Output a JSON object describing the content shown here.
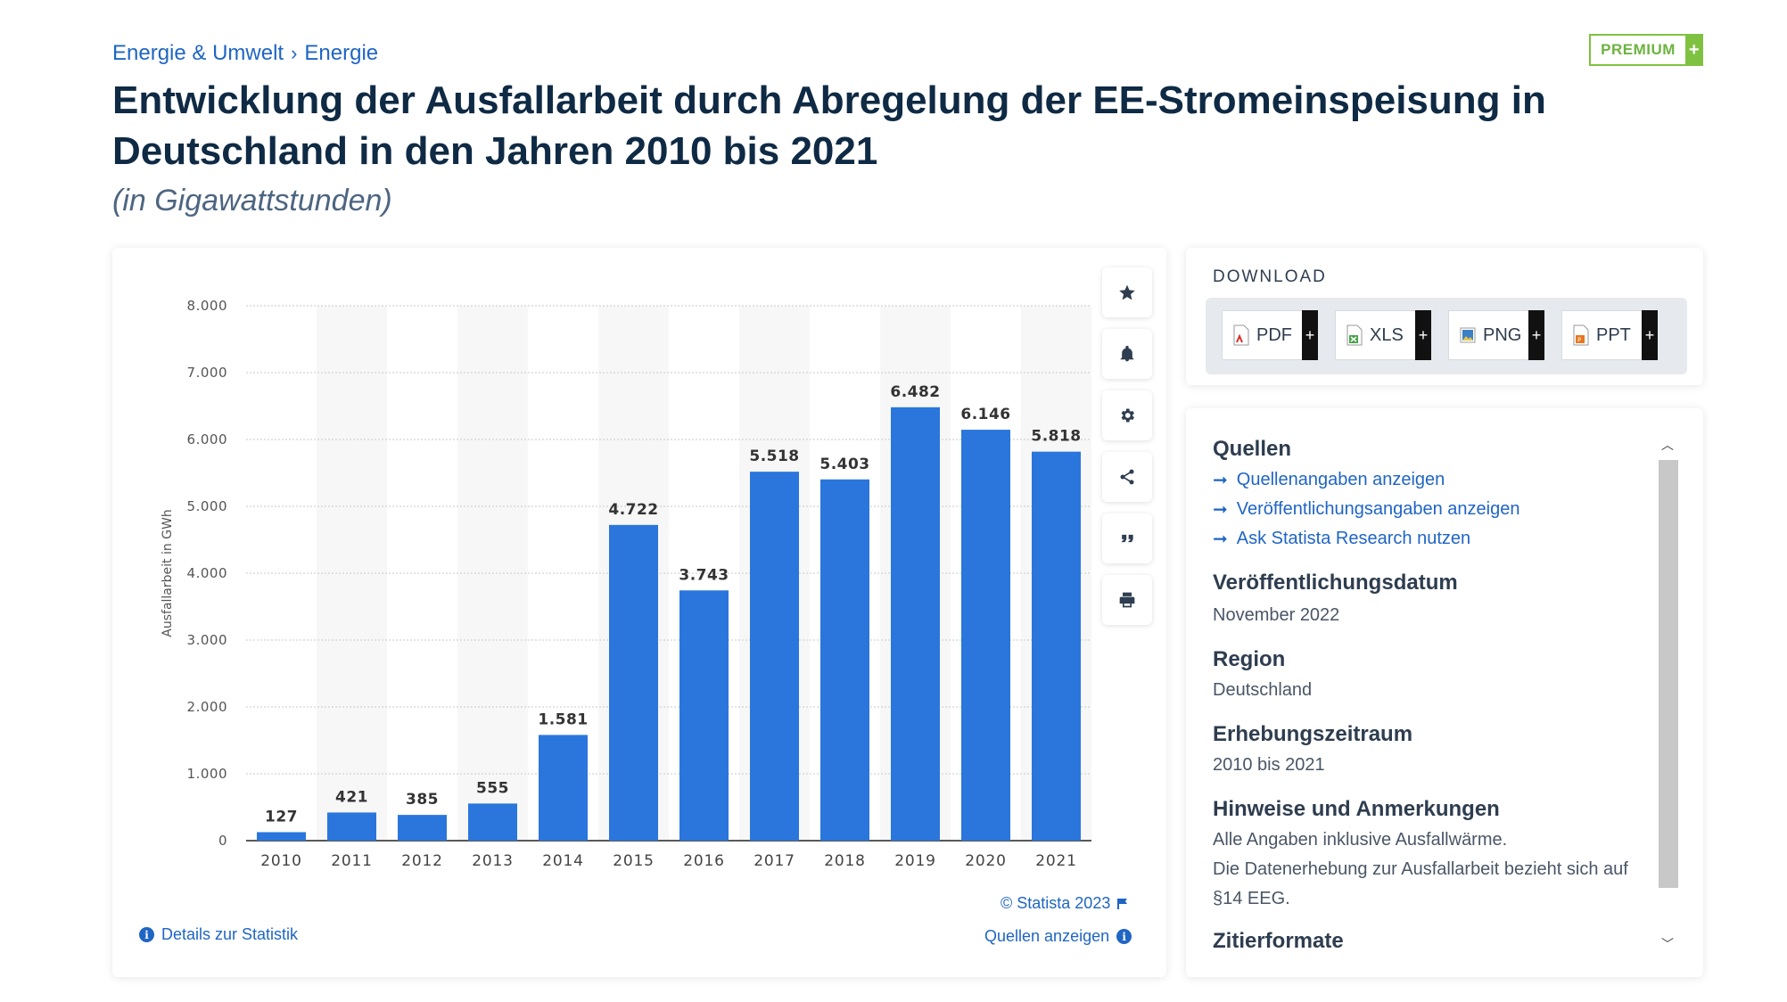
{
  "breadcrumb": {
    "items": [
      "Energie & Umwelt",
      "Energie"
    ],
    "separator": "›"
  },
  "premium": {
    "label": "PREMIUM",
    "plus": "+"
  },
  "title": "Entwicklung der Ausfallarbeit durch Abregelung der EE-Stromeinspeisung in Deutschland in den Jahren 2010 bis 2021",
  "subtitle": "(in Gigawattstunden)",
  "chart_data": {
    "type": "bar",
    "title": "Entwicklung der Ausfallarbeit durch Abregelung der EE-Stromeinspeisung in Deutschland in den Jahren 2010 bis 2021",
    "xlabel": "",
    "ylabel": "Ausfallarbeit in GWh",
    "ylim": [
      0,
      8000
    ],
    "yticks": [
      0,
      1000,
      2000,
      3000,
      4000,
      5000,
      6000,
      7000,
      8000
    ],
    "ytick_labels": [
      "0",
      "1.000",
      "2.000",
      "3.000",
      "4.000",
      "5.000",
      "6.000",
      "7.000",
      "8.000"
    ],
    "categories": [
      "2010",
      "2011",
      "2012",
      "2013",
      "2014",
      "2015",
      "2016",
      "2017",
      "2018",
      "2019",
      "2020",
      "2021"
    ],
    "values": [
      127,
      421,
      385,
      555,
      1581,
      4722,
      3743,
      5518,
      5403,
      6482,
      6146,
      5818
    ],
    "value_labels": [
      "127",
      "421",
      "385",
      "555",
      "1.581",
      "4.722",
      "3.743",
      "5.518",
      "5.403",
      "6.482",
      "6.146",
      "5.818"
    ],
    "bar_color": "#2a76dc",
    "grid": true
  },
  "tools": [
    {
      "name": "favorite",
      "icon": "star-icon"
    },
    {
      "name": "notification",
      "icon": "bell-icon"
    },
    {
      "name": "settings",
      "icon": "gear-icon"
    },
    {
      "name": "share",
      "icon": "share-icon"
    },
    {
      "name": "cite",
      "icon": "quote-icon"
    },
    {
      "name": "print",
      "icon": "print-icon"
    }
  ],
  "footer": {
    "copyright": "© Statista 2023",
    "details": "Details zur Statistik",
    "sources": "Quellen anzeigen"
  },
  "download": {
    "title": "DOWNLOAD",
    "buttons": [
      {
        "label": "PDF",
        "icon": "pdf-file-icon",
        "color": "#d9322b"
      },
      {
        "label": "XLS",
        "icon": "xls-file-icon",
        "color": "#4aa24a"
      },
      {
        "label": "PNG",
        "icon": "png-file-icon",
        "color": "#3b7fc4"
      },
      {
        "label": "PPT",
        "icon": "ppt-file-icon",
        "color": "#e8771f"
      }
    ]
  },
  "info": {
    "sources_heading": "Quellen",
    "links": [
      "Quellenangaben anzeigen",
      "Veröffentlichungsangaben anzeigen",
      "Ask Statista Research nutzen"
    ],
    "pub_date_heading": "Veröffentlichungsdatum",
    "pub_date": "November 2022",
    "region_heading": "Region",
    "region": "Deutschland",
    "period_heading": "Erhebungszeitraum",
    "period": "2010 bis 2021",
    "notes_heading": "Hinweise und Anmerkungen",
    "notes_line1": "Alle Angaben inklusive Ausfallwärme.",
    "notes_line2": "Die Datenerhebung zur Ausfallarbeit bezieht sich auf §14 EEG.",
    "cite_heading": "Zitierformate"
  }
}
